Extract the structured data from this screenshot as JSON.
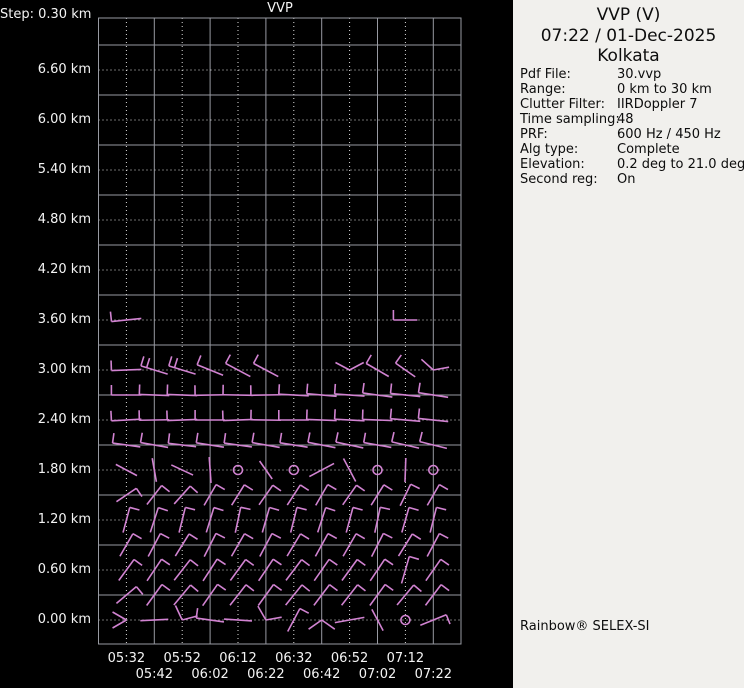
{
  "chart": {
    "title": "VVP",
    "step_label": "Step: 0.30 km",
    "y_tick_labels": [
      "6.60 km",
      "6.00 km",
      "5.40 km",
      "4.80 km",
      "4.20 km",
      "3.60 km",
      "3.00 km",
      "2.40 km",
      "1.80 km",
      "1.20 km",
      "0.60 km",
      "0.00 km"
    ],
    "x_tick_labels_row1": [
      "05:32",
      "05:52",
      "06:12",
      "06:32",
      "06:52",
      "07:12"
    ],
    "x_tick_labels_row2": [
      "05:42",
      "06:02",
      "06:22",
      "06:42",
      "07:02",
      "07:22"
    ]
  },
  "chart_data": {
    "type": "wind-barb-time-height-profile",
    "title": "VVP",
    "x_times": [
      "05:32",
      "05:42",
      "05:52",
      "06:02",
      "06:12",
      "06:22",
      "06:32",
      "06:42",
      "06:52",
      "07:02",
      "07:12",
      "07:22"
    ],
    "x_interval_min": 10,
    "y_unit": "km",
    "y_step_km": 0.3,
    "y_label_step_km": 0.6,
    "y_labeled_range": [
      0.0,
      6.6
    ],
    "grid": "alternating solid and dotted lines every 0.30 km and every 10 minutes",
    "legend_position": "none",
    "symbol_legend": {
      "b": "wind barb [time, 'b', shaft-bearing-deg, tick-count, half-length-px]",
      "l": "bare shaft [time, 'l', bearing-deg, half-length-px]",
      "c": "calm circle [time, 'c']",
      "v": "bent shaft [time, 'v', bearing1-deg, bearing2-deg]"
    },
    "rows": [
      {
        "h": 3.6,
        "b": [
          [
            "05:32",
            "b",
            186,
            1,
            15
          ],
          [
            "07:12",
            "b",
            180,
            1,
            12
          ]
        ]
      },
      {
        "h": 3.0,
        "b": [
          [
            "05:32",
            "b",
            182,
            1,
            15
          ],
          [
            "05:42",
            "b",
            163,
            2,
            14
          ],
          [
            "05:52",
            "b",
            163,
            2,
            14
          ],
          [
            "06:02",
            "b",
            158,
            1,
            14
          ],
          [
            "06:12",
            "b",
            152,
            1,
            14
          ],
          [
            "06:22",
            "b",
            152,
            1,
            14
          ],
          [
            "06:52",
            "v",
            152,
            28
          ],
          [
            "07:02",
            "b",
            150,
            1,
            13
          ],
          [
            "07:12",
            "b",
            145,
            1,
            12
          ],
          [
            "07:22",
            "v",
            138,
            10
          ]
        ]
      },
      {
        "h": 2.7,
        "b": [
          [
            "05:32",
            "b",
            180,
            1,
            15
          ],
          [
            "05:42",
            "b",
            178,
            1,
            15
          ],
          [
            "05:52",
            "b",
            178,
            1,
            15
          ],
          [
            "06:02",
            "b",
            181,
            1,
            15
          ],
          [
            "06:12",
            "b",
            179,
            1,
            15
          ],
          [
            "06:22",
            "b",
            181,
            1,
            15
          ],
          [
            "06:32",
            "b",
            177,
            1,
            15
          ],
          [
            "06:42",
            "b",
            175,
            1,
            15
          ],
          [
            "06:52",
            "b",
            176,
            1,
            15
          ],
          [
            "07:02",
            "b",
            172,
            1,
            15
          ],
          [
            "07:12",
            "b",
            174,
            1,
            15
          ],
          [
            "07:22",
            "b",
            171,
            1,
            15
          ]
        ]
      },
      {
        "h": 2.4,
        "b": [
          [
            "05:32",
            "b",
            183,
            1,
            15
          ],
          [
            "05:42",
            "b",
            181,
            1,
            15
          ],
          [
            "05:52",
            "b",
            182,
            1,
            15
          ],
          [
            "06:02",
            "b",
            180,
            1,
            15
          ],
          [
            "06:12",
            "b",
            182,
            1,
            15
          ],
          [
            "06:22",
            "b",
            179,
            1,
            15
          ],
          [
            "06:32",
            "b",
            180,
            1,
            15
          ],
          [
            "06:42",
            "b",
            178,
            1,
            15
          ],
          [
            "06:52",
            "b",
            177,
            1,
            15
          ],
          [
            "07:02",
            "b",
            178,
            1,
            15
          ],
          [
            "07:12",
            "b",
            175,
            1,
            15
          ],
          [
            "07:22",
            "b",
            174,
            1,
            15
          ]
        ]
      },
      {
        "h": 2.1,
        "b": [
          [
            "05:32",
            "b",
            172,
            1,
            14
          ],
          [
            "05:42",
            "b",
            170,
            1,
            14
          ],
          [
            "05:52",
            "b",
            173,
            1,
            14
          ],
          [
            "06:02",
            "b",
            171,
            1,
            14
          ],
          [
            "06:12",
            "b",
            172,
            1,
            14
          ],
          [
            "06:22",
            "b",
            170,
            1,
            14
          ],
          [
            "06:32",
            "b",
            171,
            1,
            14
          ],
          [
            "06:42",
            "b",
            169,
            1,
            14
          ],
          [
            "06:52",
            "b",
            168,
            1,
            14
          ],
          [
            "07:02",
            "b",
            170,
            1,
            14
          ],
          [
            "07:12",
            "b",
            167,
            1,
            14
          ],
          [
            "07:22",
            "b",
            166,
            1,
            14
          ]
        ]
      },
      {
        "h": 1.8,
        "b": [
          [
            "05:32",
            "l",
            -28,
            12
          ],
          [
            "05:42",
            "l",
            -80,
            12
          ],
          [
            "05:52",
            "l",
            -25,
            12
          ],
          [
            "06:02",
            "l",
            -86,
            13
          ],
          [
            "06:12",
            "c"
          ],
          [
            "06:22",
            "l",
            -55,
            11
          ],
          [
            "06:32",
            "c"
          ],
          [
            "06:42",
            "l",
            28,
            14
          ],
          [
            "06:52",
            "l",
            -62,
            13
          ],
          [
            "07:02",
            "c"
          ],
          [
            "07:12",
            "l",
            88,
            12
          ],
          [
            "07:22",
            "c"
          ]
        ]
      },
      {
        "h": 1.5,
        "b": [
          [
            "05:32",
            "b",
            34,
            1,
            12
          ],
          [
            "05:42",
            "b",
            52,
            1,
            12
          ],
          [
            "05:52",
            "b",
            48,
            1,
            12
          ],
          [
            "06:02",
            "b",
            60,
            1,
            12
          ],
          [
            "06:12",
            "b",
            58,
            1,
            12
          ],
          [
            "06:22",
            "b",
            55,
            1,
            12
          ],
          [
            "06:32",
            "b",
            57,
            1,
            12
          ],
          [
            "06:42",
            "b",
            60,
            1,
            12
          ],
          [
            "06:52",
            "b",
            55,
            1,
            12
          ],
          [
            "07:02",
            "b",
            58,
            1,
            12
          ],
          [
            "07:12",
            "b",
            64,
            1,
            12
          ],
          [
            "07:22",
            "b",
            60,
            1,
            12
          ]
        ]
      },
      {
        "h": 1.2,
        "b": [
          [
            "05:32",
            "b",
            75,
            1,
            13
          ],
          [
            "05:42",
            "b",
            72,
            1,
            13
          ],
          [
            "05:52",
            "b",
            76,
            1,
            13
          ],
          [
            "06:02",
            "b",
            73,
            1,
            13
          ],
          [
            "06:12",
            "b",
            78,
            1,
            13
          ],
          [
            "06:22",
            "b",
            74,
            1,
            13
          ],
          [
            "06:32",
            "b",
            76,
            1,
            13
          ],
          [
            "06:42",
            "b",
            72,
            1,
            13
          ],
          [
            "06:52",
            "b",
            75,
            1,
            13
          ],
          [
            "07:02",
            "b",
            78,
            1,
            13
          ],
          [
            "07:12",
            "b",
            74,
            1,
            13
          ],
          [
            "07:22",
            "b",
            76,
            1,
            13
          ]
        ]
      },
      {
        "h": 0.9,
        "b": [
          [
            "05:32",
            "b",
            60,
            1,
            13
          ],
          [
            "05:42",
            "b",
            62,
            1,
            13
          ],
          [
            "05:52",
            "b",
            58,
            1,
            13
          ],
          [
            "06:02",
            "b",
            63,
            1,
            13
          ],
          [
            "06:12",
            "b",
            60,
            1,
            13
          ],
          [
            "06:22",
            "b",
            62,
            1,
            13
          ],
          [
            "06:32",
            "b",
            59,
            1,
            13
          ],
          [
            "06:42",
            "b",
            61,
            1,
            13
          ],
          [
            "06:52",
            "b",
            60,
            1,
            13
          ],
          [
            "07:02",
            "b",
            63,
            1,
            13
          ],
          [
            "07:12",
            "b",
            58,
            1,
            13
          ],
          [
            "07:22",
            "b",
            62,
            1,
            13
          ]
        ]
      },
      {
        "h": 0.6,
        "b": [
          [
            "05:32",
            "b",
            54,
            1,
            13
          ],
          [
            "05:42",
            "b",
            56,
            1,
            13
          ],
          [
            "05:52",
            "b",
            52,
            1,
            13
          ],
          [
            "06:02",
            "b",
            57,
            1,
            13
          ],
          [
            "06:12",
            "b",
            54,
            1,
            13
          ],
          [
            "06:22",
            "b",
            56,
            1,
            13
          ],
          [
            "06:32",
            "b",
            53,
            1,
            13
          ],
          [
            "06:42",
            "b",
            55,
            1,
            13
          ],
          [
            "06:52",
            "b",
            54,
            1,
            13
          ],
          [
            "07:02",
            "b",
            56,
            1,
            13
          ],
          [
            "07:12",
            "b",
            74,
            1,
            14
          ],
          [
            "07:22",
            "b",
            55,
            1,
            13
          ]
        ]
      },
      {
        "h": 0.3,
        "b": [
          [
            "05:32",
            "b",
            40,
            1,
            13
          ],
          [
            "05:42",
            "b",
            54,
            1,
            13
          ],
          [
            "05:52",
            "b",
            50,
            1,
            13
          ],
          [
            "06:02",
            "b",
            55,
            1,
            13
          ],
          [
            "06:12",
            "b",
            52,
            1,
            13
          ],
          [
            "06:22",
            "b",
            54,
            1,
            13
          ],
          [
            "06:32",
            "b",
            51,
            1,
            13
          ],
          [
            "06:42",
            "b",
            53,
            1,
            13
          ],
          [
            "06:52",
            "b",
            52,
            1,
            13
          ],
          [
            "07:02",
            "b",
            54,
            1,
            13
          ],
          [
            "07:12",
            "b",
            50,
            1,
            13
          ],
          [
            "07:22",
            "b",
            53,
            1,
            13
          ]
        ]
      },
      {
        "h": 0.0,
        "b": [
          [
            "05:32",
            "v",
            150,
            210
          ],
          [
            "05:42",
            "l",
            183,
            14
          ],
          [
            "05:52",
            "v",
            115,
            15
          ],
          [
            "06:02",
            "b",
            172,
            1,
            14
          ],
          [
            "06:12",
            "l",
            176,
            14
          ],
          [
            "06:22",
            "v",
            120,
            10
          ],
          [
            "06:32",
            "b",
            62,
            1,
            13
          ],
          [
            "06:42",
            "v",
            215,
            -35
          ],
          [
            "06:52",
            "l",
            190,
            15
          ],
          [
            "07:02",
            "l",
            -62,
            12
          ],
          [
            "07:12",
            "c"
          ],
          [
            "07:22",
            "b",
            22,
            1,
            14
          ]
        ]
      }
    ]
  },
  "panel": {
    "title_line1": "VVP (V)",
    "title_line2": "07:22 / 01-Dec-2025",
    "title_line3": "Kolkata",
    "fields": [
      {
        "label": "Pdf File:",
        "value": "30.vvp"
      },
      {
        "label": "Range:",
        "value": "0 km to 30 km"
      },
      {
        "label": "Clutter Filter:",
        "value": "IIRDoppler 7"
      },
      {
        "label": "Time sampling:",
        "value": "48"
      },
      {
        "label": "PRF:",
        "value": "600 Hz / 450 Hz"
      },
      {
        "label": "Alg type:",
        "value": "Complete"
      },
      {
        "label": "Elevation:",
        "value": "0.2 deg to 21.0 deg"
      },
      {
        "label": "Second reg:",
        "value": "On"
      }
    ],
    "brand": "Rainbow® SELEX-SI"
  },
  "colors": {
    "background": "#000000",
    "panel_background": "#f1f0ed",
    "barb": "#d183d1",
    "grid_solid": "#989aa2",
    "grid_dotted": "#dddddd",
    "axis_text": "#f4f4f4",
    "panel_text": "#0d0d0d"
  }
}
